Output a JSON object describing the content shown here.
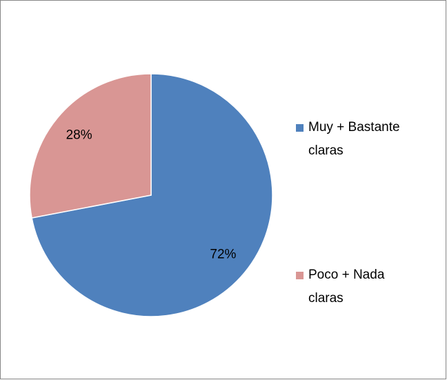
{
  "chart_data": {
    "type": "pie",
    "categories": [
      "Muy + Bastante claras",
      "Poco + Nada claras"
    ],
    "values": [
      72,
      28
    ],
    "value_labels": [
      "72%",
      "28%"
    ],
    "colors": [
      "#4f81bd",
      "#d99694"
    ],
    "legend": "right"
  }
}
